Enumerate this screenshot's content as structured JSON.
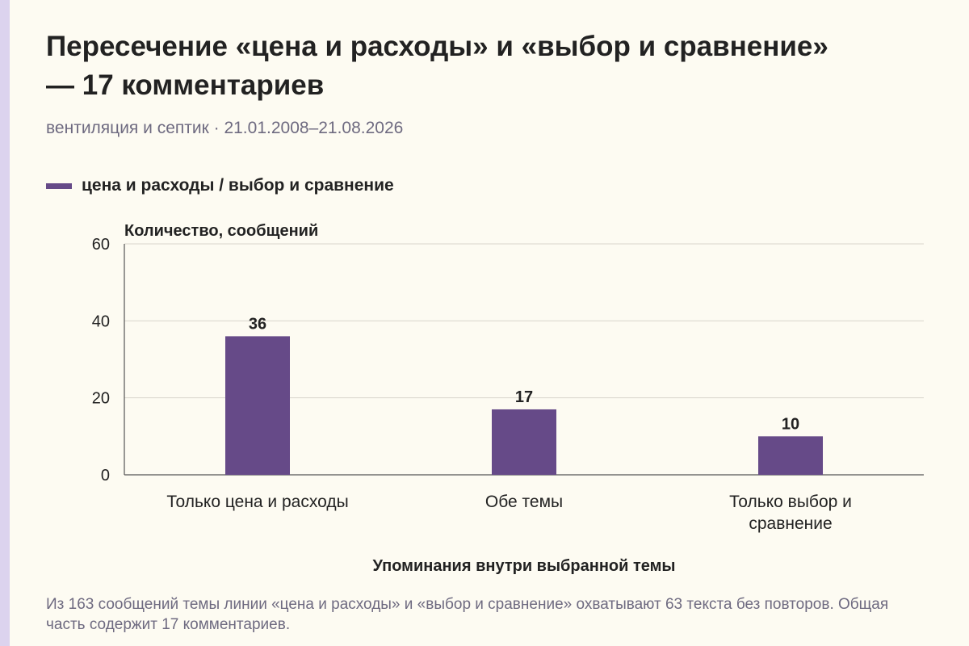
{
  "title": "Пересечение «цена и расходы» и «выбор и сравнение» — 17 комментариев",
  "subtitle": "вентиляция и септик · 21.01.2008–21.08.2026",
  "footnote": "Из 163 сообщений темы линии «цена и расходы» и «выбор и сравнение» охватывают 63 текста без повторов. Общая часть содержит 17 комментариев.",
  "colors": {
    "bar": "#664a88",
    "background": "#fdfbf2",
    "accent_strip": "#dcd3ee",
    "muted_text": "#6e6a80",
    "grid": "#d9d6cc"
  },
  "chart_data": {
    "type": "bar",
    "categories": [
      "Только цена и расходы",
      "Обе темы",
      "Только выбор и сравнение"
    ],
    "category_lines": [
      [
        "Только цена и расходы"
      ],
      [
        "Обе темы"
      ],
      [
        "Только выбор и",
        "сравнение"
      ]
    ],
    "series": [
      {
        "name": "цена и расходы / выбор и сравнение",
        "values": [
          36,
          17,
          10
        ]
      }
    ],
    "value_labels": [
      "36",
      "17",
      "10"
    ],
    "ylabel": "Количество, сообщений",
    "xlabel": "Упоминания внутри выбранной темы",
    "ylim": [
      0,
      60
    ],
    "yticks": [
      0,
      20,
      40,
      60
    ],
    "grid": true,
    "legend_position": "top-left"
  }
}
